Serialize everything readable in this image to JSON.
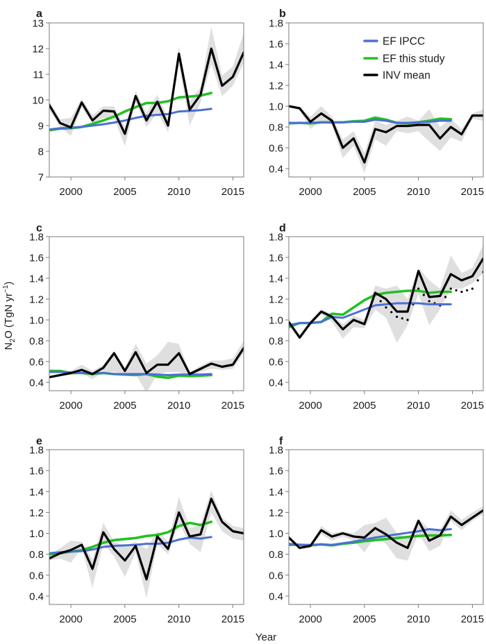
{
  "figure": {
    "ylabel_main": "N",
    "ylabel_sub": "2",
    "ylabel_rest": "O (TgN yr",
    "ylabel_sup": "−1",
    "ylabel_close": ")",
    "xlabel": "Year"
  },
  "legend": [
    {
      "key": "ipcc",
      "label": "EF IPCC",
      "color": "#4a6fd6"
    },
    {
      "key": "study",
      "label": "EF this study",
      "color": "#22c11f"
    },
    {
      "key": "inv",
      "label": "INV mean",
      "color": "#000000"
    }
  ],
  "colors": {
    "ipcc": "#4a6fd6",
    "study": "#22c11f",
    "inv": "#000000",
    "band": "#d9d9d9"
  },
  "chart_data": [
    {
      "panel": "a",
      "type": "line",
      "xlabel": "",
      "ylabel": "",
      "xlim": [
        1998,
        2016
      ],
      "ylim": [
        7,
        13
      ],
      "xticks": [
        2000,
        2005,
        2010,
        2015
      ],
      "yticks": [
        7,
        8,
        9,
        10,
        11,
        12,
        13
      ],
      "ytick_labels": [
        "7",
        "8",
        "9",
        "10",
        "11",
        "12",
        "13"
      ],
      "legend": false,
      "x": [
        1998,
        1999,
        2000,
        2001,
        2002,
        2003,
        2004,
        2005,
        2006,
        2007,
        2008,
        2009,
        2010,
        2011,
        2012,
        2013,
        2014,
        2015,
        2016
      ],
      "series": [
        {
          "name": "EF IPCC",
          "key": "ipcc",
          "x_end": 2013,
          "values": [
            8.85,
            8.9,
            8.92,
            8.95,
            9.0,
            9.05,
            9.12,
            9.2,
            9.3,
            9.38,
            9.42,
            9.45,
            9.55,
            9.57,
            9.6,
            9.65
          ]
        },
        {
          "name": "EF this study",
          "key": "study",
          "x_end": 2013,
          "values": [
            8.82,
            8.88,
            8.9,
            8.95,
            9.07,
            9.2,
            9.35,
            9.55,
            9.72,
            9.88,
            9.88,
            9.95,
            10.1,
            10.13,
            10.17,
            10.27
          ]
        },
        {
          "name": "INV mean",
          "key": "inv",
          "values": [
            9.8,
            9.1,
            8.93,
            9.9,
            9.2,
            9.58,
            9.55,
            8.68,
            10.15,
            9.2,
            9.93,
            9.0,
            11.8,
            9.62,
            10.2,
            12.0,
            10.55,
            10.9,
            11.85
          ]
        },
        {
          "name": "INV range low",
          "key": "band_low",
          "values": [
            9.6,
            8.95,
            8.6,
            9.7,
            9.1,
            9.3,
            9.3,
            8.2,
            9.9,
            8.95,
            9.5,
            8.75,
            11.4,
            9.0,
            9.9,
            11.4,
            10.15,
            10.55,
            11.45
          ]
        },
        {
          "name": "INV range high",
          "key": "band_high",
          "values": [
            9.95,
            9.25,
            9.3,
            10.05,
            9.4,
            9.75,
            9.75,
            8.95,
            10.35,
            9.5,
            10.2,
            9.3,
            12.1,
            9.95,
            10.5,
            12.85,
            10.95,
            11.3,
            12.6
          ]
        }
      ]
    },
    {
      "panel": "b",
      "type": "line",
      "xlim": [
        1998,
        2016
      ],
      "ylim": [
        0.32,
        1.8
      ],
      "xticks": [
        2000,
        2005,
        2010,
        2015
      ],
      "yticks": [
        0.4,
        0.6,
        0.8,
        1.0,
        1.2,
        1.4,
        1.6,
        1.8
      ],
      "ytick_labels": [
        "0.4",
        "0.6",
        "0.8",
        "1.0",
        "1.2",
        "1.4",
        "1.6",
        "1.8"
      ],
      "legend": true,
      "legend_position": "top-right",
      "x": [
        1998,
        1999,
        2000,
        2001,
        2002,
        2003,
        2004,
        2005,
        2006,
        2007,
        2008,
        2009,
        2010,
        2011,
        2012,
        2013,
        2014,
        2015,
        2016
      ],
      "series": [
        {
          "name": "EF IPCC",
          "key": "ipcc",
          "x_end": 2013,
          "values": [
            0.84,
            0.84,
            0.84,
            0.845,
            0.845,
            0.845,
            0.85,
            0.85,
            0.87,
            0.86,
            0.84,
            0.84,
            0.845,
            0.85,
            0.86,
            0.86
          ]
        },
        {
          "name": "EF this study",
          "key": "study",
          "x_end": 2013,
          "values": [
            0.835,
            0.84,
            0.835,
            0.845,
            0.845,
            0.845,
            0.855,
            0.86,
            0.89,
            0.87,
            0.84,
            0.835,
            0.845,
            0.86,
            0.88,
            0.875
          ]
        },
        {
          "name": "INV mean",
          "key": "inv",
          "values": [
            1.0,
            0.98,
            0.85,
            0.93,
            0.86,
            0.6,
            0.69,
            0.46,
            0.78,
            0.75,
            0.81,
            0.81,
            0.82,
            0.82,
            0.69,
            0.8,
            0.73,
            0.91,
            0.91
          ]
        },
        {
          "name": "INV range low",
          "key": "band_low",
          "values": [
            0.99,
            0.96,
            0.78,
            0.86,
            0.82,
            0.5,
            0.62,
            0.36,
            0.68,
            0.62,
            0.76,
            0.74,
            0.76,
            0.66,
            0.57,
            0.7,
            0.66,
            0.88,
            0.86
          ]
        },
        {
          "name": "INV range high",
          "key": "band_high",
          "values": [
            1.01,
            0.99,
            0.9,
            1.0,
            0.9,
            0.68,
            0.76,
            0.55,
            0.86,
            0.82,
            0.86,
            0.9,
            0.86,
            0.97,
            0.8,
            0.88,
            0.78,
            0.93,
            0.97
          ]
        }
      ]
    },
    {
      "panel": "c",
      "type": "line",
      "xlim": [
        1998,
        2016
      ],
      "ylim": [
        0.32,
        1.8
      ],
      "xticks": [
        2000,
        2005,
        2010,
        2015
      ],
      "yticks": [
        0.4,
        0.6,
        0.8,
        1.0,
        1.2,
        1.4,
        1.6,
        1.8
      ],
      "ytick_labels": [
        "0.4",
        "0.6",
        "0.8",
        "1.0",
        "1.2",
        "1.4",
        "1.6",
        "1.8"
      ],
      "legend": false,
      "x": [
        1998,
        1999,
        2000,
        2001,
        2002,
        2003,
        2004,
        2005,
        2006,
        2007,
        2008,
        2009,
        2010,
        2011,
        2012,
        2013,
        2014,
        2015,
        2016
      ],
      "series": [
        {
          "name": "EF IPCC",
          "key": "ipcc",
          "x_end": 2013,
          "values": [
            0.5,
            0.5,
            0.495,
            0.49,
            0.485,
            0.49,
            0.48,
            0.48,
            0.48,
            0.48,
            0.475,
            0.47,
            0.475,
            0.475,
            0.475,
            0.48
          ]
        },
        {
          "name": "EF this study",
          "key": "study",
          "x_end": 2013,
          "values": [
            0.51,
            0.51,
            0.49,
            0.49,
            0.48,
            0.49,
            0.48,
            0.475,
            0.47,
            0.48,
            0.455,
            0.445,
            0.465,
            0.46,
            0.465,
            0.47
          ]
        },
        {
          "name": "INV mean",
          "key": "inv",
          "values": [
            0.45,
            0.47,
            0.49,
            0.52,
            0.48,
            0.54,
            0.68,
            0.51,
            0.69,
            0.49,
            0.57,
            0.57,
            0.68,
            0.48,
            0.53,
            0.58,
            0.55,
            0.57,
            0.73
          ]
        },
        {
          "name": "INV range low",
          "key": "band_low",
          "values": [
            0.44,
            0.46,
            0.47,
            0.49,
            0.43,
            0.5,
            0.5,
            0.48,
            0.48,
            0.3,
            0.48,
            0.5,
            0.5,
            0.46,
            0.5,
            0.53,
            0.52,
            0.53,
            0.68
          ]
        },
        {
          "name": "INV range high",
          "key": "band_high",
          "values": [
            0.46,
            0.48,
            0.51,
            0.57,
            0.51,
            0.57,
            0.7,
            0.54,
            0.77,
            0.58,
            0.66,
            0.79,
            0.77,
            0.5,
            0.56,
            0.61,
            0.61,
            0.63,
            0.8
          ]
        }
      ]
    },
    {
      "panel": "d",
      "type": "line",
      "xlim": [
        1998,
        2016
      ],
      "ylim": [
        0.32,
        1.8
      ],
      "xticks": [
        2000,
        2005,
        2010,
        2015
      ],
      "yticks": [
        0.4,
        0.6,
        0.8,
        1.0,
        1.2,
        1.4,
        1.6,
        1.8
      ],
      "ytick_labels": [
        "0.4",
        "0.6",
        "0.8",
        "1.0",
        "1.2",
        "1.4",
        "1.6",
        "1.8"
      ],
      "legend": false,
      "x": [
        1998,
        1999,
        2000,
        2001,
        2002,
        2003,
        2004,
        2005,
        2006,
        2007,
        2008,
        2009,
        2010,
        2011,
        2012,
        2013,
        2014,
        2015,
        2016
      ],
      "series": [
        {
          "name": "EF IPCC",
          "key": "ipcc",
          "x_end": 2013,
          "values": [
            0.95,
            0.97,
            0.97,
            0.98,
            1.03,
            1.02,
            1.06,
            1.1,
            1.14,
            1.15,
            1.16,
            1.16,
            1.16,
            1.15,
            1.15,
            1.15
          ]
        },
        {
          "name": "EF this study",
          "key": "study",
          "x_end": 2013,
          "values": [
            0.93,
            0.97,
            0.97,
            0.98,
            1.06,
            1.05,
            1.12,
            1.19,
            1.24,
            1.26,
            1.27,
            1.28,
            1.28,
            1.26,
            1.27,
            1.27
          ]
        },
        {
          "name": "INV mean",
          "key": "inv",
          "values": [
            0.98,
            0.83,
            0.97,
            1.08,
            1.03,
            0.91,
            1.0,
            0.96,
            1.26,
            1.2,
            1.08,
            1.08,
            1.47,
            1.22,
            1.23,
            1.44,
            1.38,
            1.42,
            1.59
          ]
        },
        {
          "name": "INV dotted",
          "key": "dotted",
          "values": [
            null,
            null,
            null,
            null,
            null,
            null,
            null,
            null,
            1.24,
            1.12,
            1.03,
            1.0,
            1.3,
            1.18,
            1.14,
            1.3,
            1.27,
            1.3,
            1.46
          ]
        },
        {
          "name": "INV range low",
          "key": "band_low",
          "values": [
            0.94,
            0.82,
            0.95,
            1.05,
            0.98,
            0.82,
            0.93,
            0.92,
            1.1,
            1.02,
            0.78,
            0.95,
            1.25,
            0.95,
            1.1,
            1.3,
            1.3,
            1.35,
            1.45
          ]
        },
        {
          "name": "INV range high",
          "key": "band_high",
          "values": [
            1.0,
            0.86,
            0.99,
            1.1,
            1.06,
            0.96,
            1.04,
            1.0,
            1.33,
            1.3,
            1.33,
            1.2,
            1.5,
            1.38,
            1.3,
            1.62,
            1.45,
            1.5,
            1.72
          ]
        }
      ]
    },
    {
      "panel": "e",
      "type": "line",
      "xlim": [
        1998,
        2016
      ],
      "ylim": [
        0.32,
        1.8
      ],
      "xticks": [
        2000,
        2005,
        2010,
        2015
      ],
      "yticks": [
        0.4,
        0.6,
        0.8,
        1.0,
        1.2,
        1.4,
        1.6,
        1.8
      ],
      "ytick_labels": [
        "0.4",
        "0.6",
        "0.8",
        "1.0",
        "1.2",
        "1.4",
        "1.6",
        "1.8"
      ],
      "legend": false,
      "x": [
        1998,
        1999,
        2000,
        2001,
        2002,
        2003,
        2004,
        2005,
        2006,
        2007,
        2008,
        2009,
        2010,
        2011,
        2012,
        2013,
        2014,
        2015,
        2016
      ],
      "series": [
        {
          "name": "EF IPCC",
          "key": "ipcc",
          "x_end": 2013,
          "values": [
            0.81,
            0.82,
            0.825,
            0.83,
            0.845,
            0.87,
            0.88,
            0.885,
            0.89,
            0.9,
            0.9,
            0.91,
            0.94,
            0.96,
            0.95,
            0.965
          ]
        },
        {
          "name": "EF this study",
          "key": "study",
          "x_end": 2013,
          "values": [
            0.8,
            0.81,
            0.825,
            0.84,
            0.87,
            0.91,
            0.935,
            0.945,
            0.955,
            0.975,
            0.985,
            1.01,
            1.07,
            1.1,
            1.08,
            1.11
          ]
        },
        {
          "name": "INV mean",
          "key": "inv",
          "values": [
            0.76,
            0.81,
            0.84,
            0.89,
            0.66,
            1.01,
            0.85,
            0.74,
            0.88,
            0.56,
            0.97,
            0.85,
            1.2,
            0.97,
            0.99,
            1.33,
            1.11,
            1.02,
            1.0
          ]
        },
        {
          "name": "INV range low",
          "key": "band_low",
          "values": [
            0.74,
            0.76,
            0.72,
            0.86,
            0.48,
            0.9,
            0.78,
            0.58,
            0.82,
            0.38,
            0.9,
            0.8,
            1.1,
            0.9,
            0.82,
            1.2,
            1.02,
            0.95,
            0.93
          ]
        },
        {
          "name": "INV range high",
          "key": "band_high",
          "values": [
            0.79,
            0.86,
            0.93,
            0.92,
            0.75,
            1.1,
            0.92,
            0.88,
            0.92,
            0.85,
            1.02,
            0.92,
            1.35,
            1.05,
            1.08,
            1.41,
            1.15,
            1.07,
            1.05
          ]
        }
      ]
    },
    {
      "panel": "f",
      "type": "line",
      "xlim": [
        1998,
        2016
      ],
      "ylim": [
        0.32,
        1.8
      ],
      "xticks": [
        2000,
        2005,
        2010,
        2015
      ],
      "yticks": [
        0.4,
        0.6,
        0.8,
        1.0,
        1.2,
        1.4,
        1.6,
        1.8
      ],
      "ytick_labels": [
        "0.4",
        "0.6",
        "0.8",
        "1.0",
        "1.2",
        "1.4",
        "1.6",
        "1.8"
      ],
      "legend": false,
      "x": [
        1998,
        1999,
        2000,
        2001,
        2002,
        2003,
        2004,
        2005,
        2006,
        2007,
        2008,
        2009,
        2010,
        2011,
        2012,
        2013,
        2014,
        2015,
        2016
      ],
      "series": [
        {
          "name": "EF IPCC",
          "key": "ipcc",
          "x_end": 2013,
          "values": [
            0.9,
            0.89,
            0.89,
            0.895,
            0.89,
            0.905,
            0.92,
            0.94,
            0.96,
            0.975,
            0.99,
            1.005,
            1.02,
            1.04,
            1.03,
            1.04
          ]
        },
        {
          "name": "EF this study",
          "key": "study",
          "x_end": 2013,
          "values": [
            0.89,
            0.89,
            0.885,
            0.895,
            0.885,
            0.9,
            0.91,
            0.925,
            0.935,
            0.945,
            0.955,
            0.965,
            0.975,
            0.98,
            0.98,
            0.985
          ]
        },
        {
          "name": "INV mean",
          "key": "inv",
          "values": [
            0.96,
            0.86,
            0.88,
            1.03,
            0.97,
            1.0,
            0.97,
            0.96,
            1.05,
            0.99,
            0.91,
            0.86,
            1.12,
            0.93,
            0.98,
            1.16,
            1.08,
            1.15,
            1.22
          ]
        },
        {
          "name": "INV range low",
          "key": "band_low",
          "values": [
            0.94,
            0.85,
            0.86,
            0.99,
            0.93,
            0.97,
            0.93,
            0.82,
            0.97,
            0.9,
            0.76,
            0.74,
            1.0,
            0.83,
            0.88,
            1.12,
            1.03,
            1.12,
            1.18
          ]
        },
        {
          "name": "INV range high",
          "key": "band_high",
          "values": [
            0.98,
            0.88,
            0.9,
            1.07,
            1.0,
            1.02,
            1.0,
            1.08,
            1.1,
            1.15,
            1.0,
            0.95,
            1.14,
            1.04,
            1.03,
            1.22,
            1.13,
            1.2,
            1.26
          ]
        }
      ]
    }
  ]
}
